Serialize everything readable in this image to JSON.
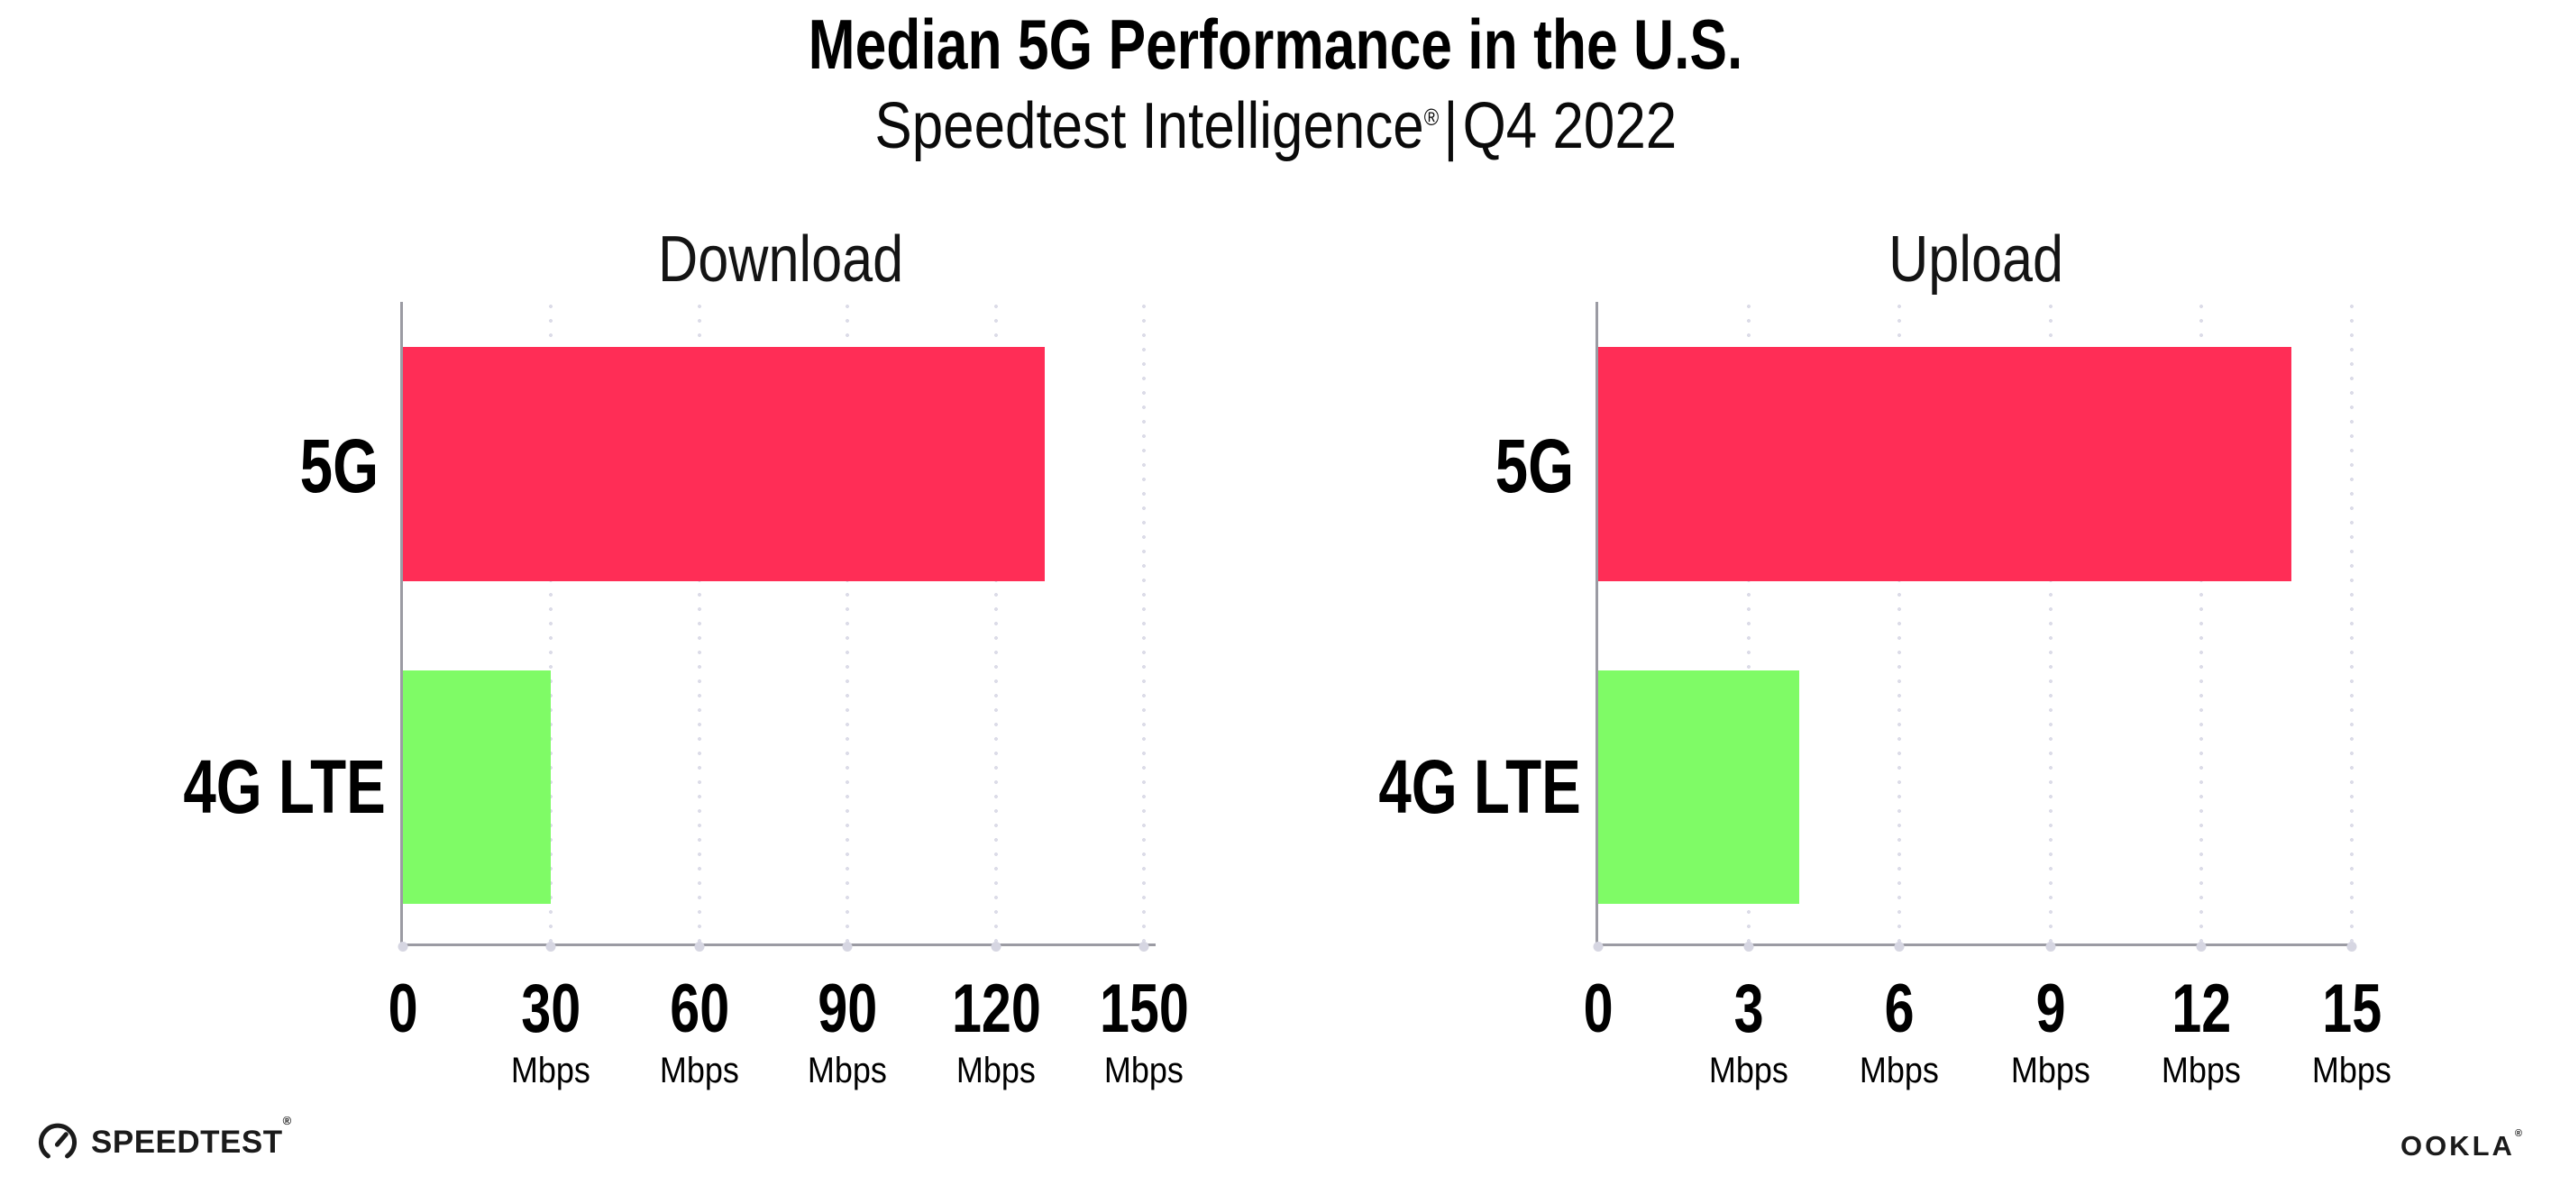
{
  "header": {
    "title": "Median 5G Performance in the U.S.",
    "subtitle_brand": "Speedtest Intelligence",
    "subtitle_trademark": "®",
    "subtitle_separator": "|",
    "subtitle_period": "Q4 2022"
  },
  "chart_data": [
    {
      "type": "bar",
      "orientation": "horizontal",
      "title": "Download",
      "categories": [
        "5G",
        "4G LTE"
      ],
      "values": [
        130,
        30
      ],
      "value_unit": "Mbps",
      "xlim": [
        0,
        150
      ],
      "xticks": [
        0,
        30,
        60,
        90,
        120,
        150
      ],
      "xtick_unit": "Mbps",
      "bar_colors": [
        "#FF2D56",
        "#7FFB66"
      ],
      "grid": "vertical-dotted",
      "legend": "none"
    },
    {
      "type": "bar",
      "orientation": "horizontal",
      "title": "Upload",
      "categories": [
        "5G",
        "4G LTE"
      ],
      "values": [
        13.8,
        4
      ],
      "value_unit": "Mbps",
      "xlim": [
        0,
        15
      ],
      "xticks": [
        0,
        3,
        6,
        9,
        12,
        15
      ],
      "xtick_unit": "Mbps",
      "bar_colors": [
        "#FF2D56",
        "#7FFB66"
      ],
      "grid": "vertical-dotted",
      "legend": "none"
    }
  ],
  "colors": {
    "bar_5g": "#FF2D56",
    "bar_4g_lte": "#7FFB66",
    "axis_line": "#9B9BA3",
    "gridline_dots": "#DCDCE8",
    "text": "#000000"
  },
  "footer": {
    "speedtest_text": "SPEEDTEST",
    "speedtest_trademark": "®",
    "ookla_text": "OOKLA",
    "ookla_trademark": "®"
  }
}
